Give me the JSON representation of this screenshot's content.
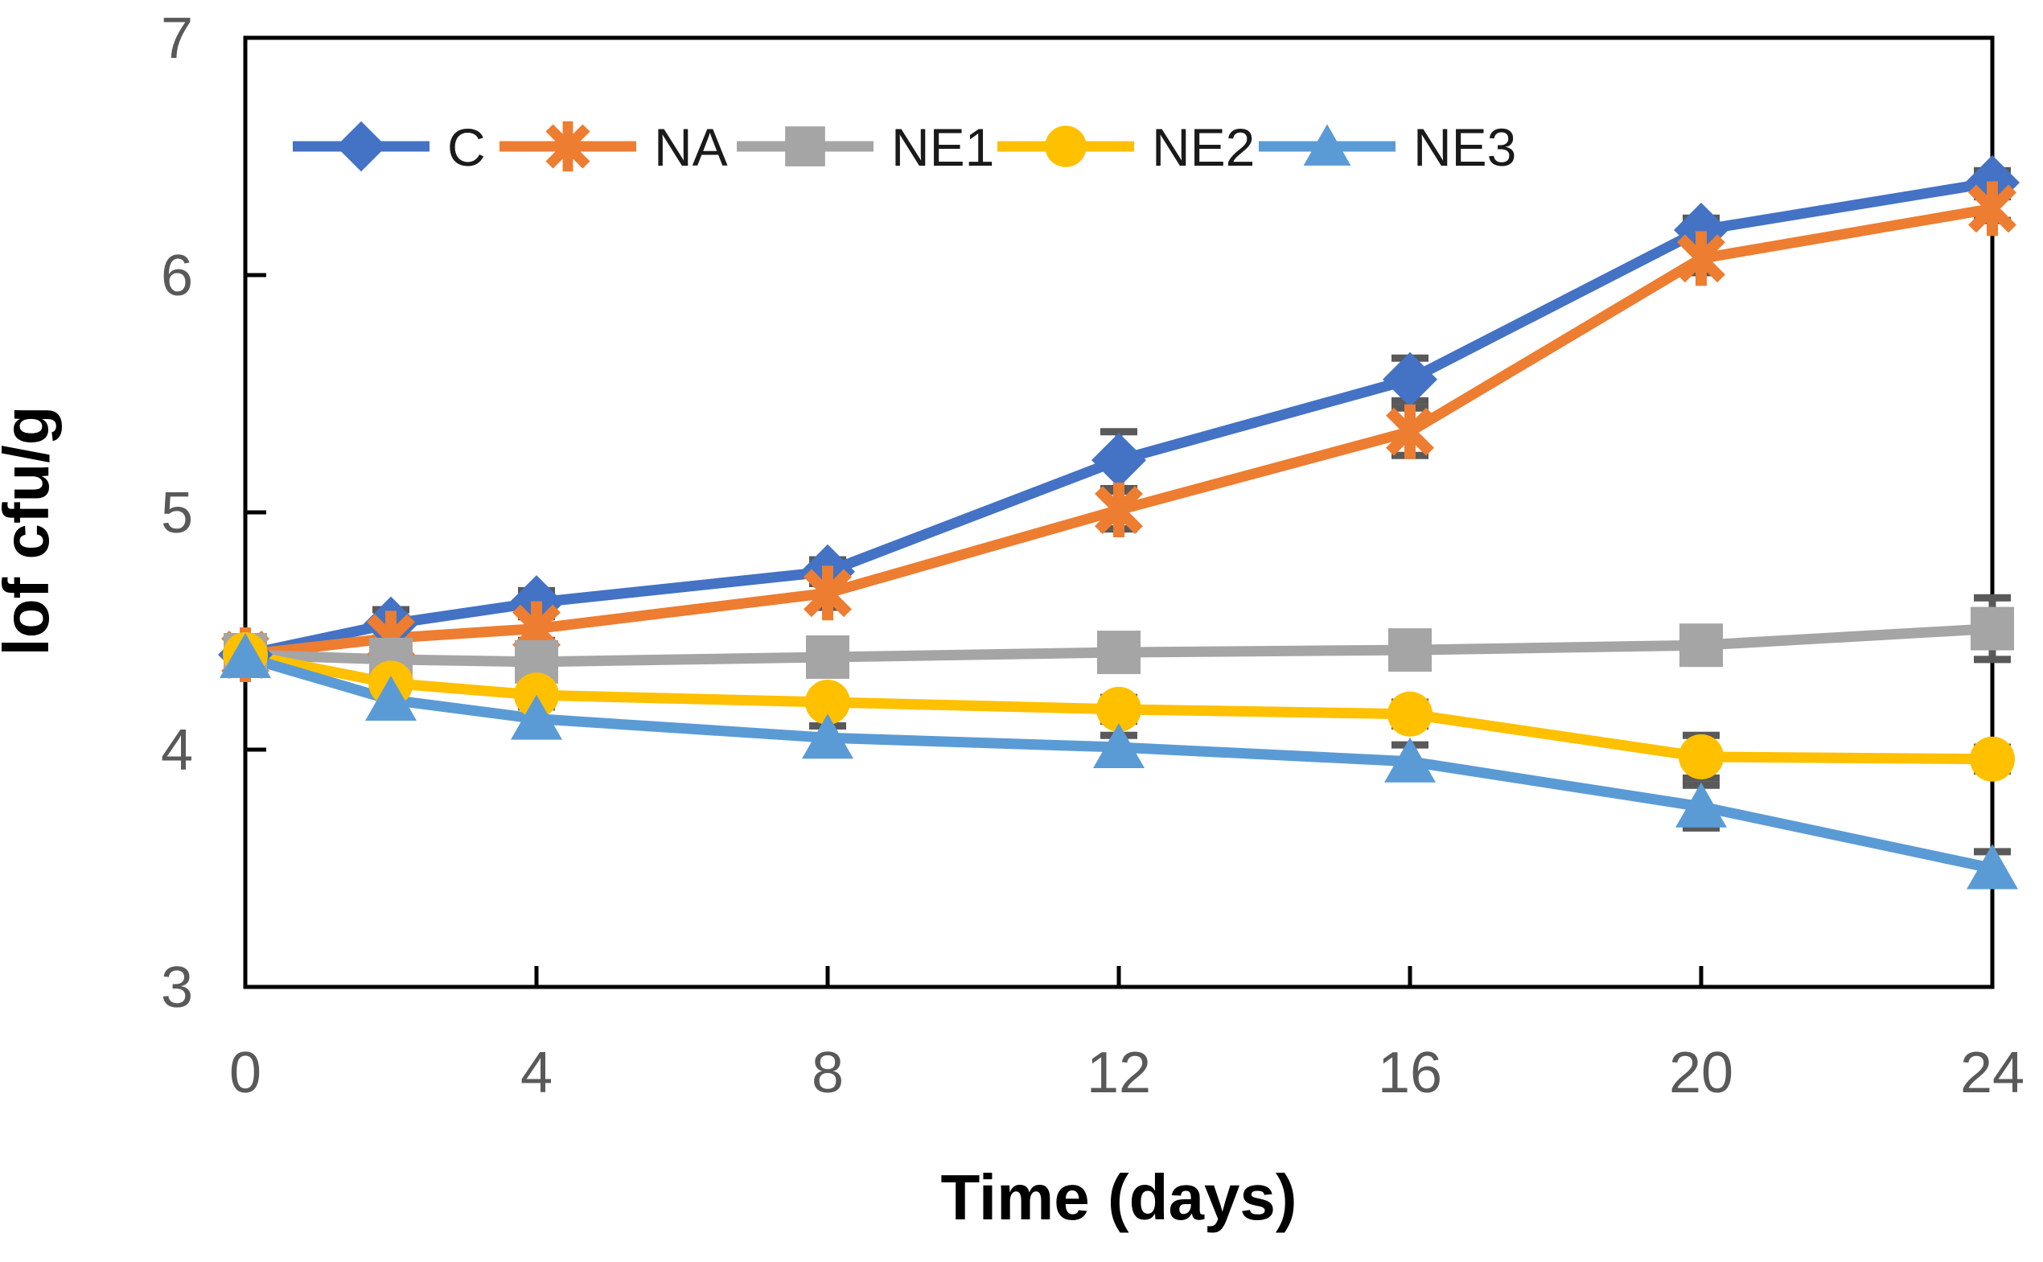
{
  "chart_data": {
    "type": "line",
    "title": "",
    "xlabel": "Time (days)",
    "ylabel": "lof cfu/g",
    "x": [
      0,
      2,
      4,
      8,
      12,
      16,
      20,
      24
    ],
    "x_ticks": [
      0,
      4,
      8,
      12,
      16,
      20,
      24
    ],
    "x_tick_labels": [
      "0",
      "4",
      "8",
      "12",
      "16",
      "20",
      "24"
    ],
    "y_ticks": [
      3,
      4,
      5,
      6,
      7
    ],
    "y_tick_labels": [
      "3",
      "4",
      "5",
      "6",
      "7"
    ],
    "xlim": [
      0,
      24
    ],
    "ylim": [
      3,
      7
    ],
    "grid": false,
    "legend_position": "top-inside-horizontal",
    "legend_entries": [
      "C",
      "NA",
      "NE1",
      "NE2",
      "NE3"
    ],
    "series": [
      {
        "name": "C",
        "color": "#4472C4",
        "marker": "diamond",
        "values": [
          4.4,
          4.53,
          4.62,
          4.75,
          5.22,
          5.56,
          6.19,
          6.39
        ],
        "errors": [
          0.03,
          0.06,
          0.05,
          0.05,
          0.12,
          0.09,
          0.05,
          0.05
        ]
      },
      {
        "name": "NA",
        "color": "#ED7D31",
        "marker": "asterisk",
        "values": [
          4.4,
          4.47,
          4.51,
          4.66,
          5.01,
          5.34,
          6.07,
          6.28
        ],
        "errors": [
          0.03,
          0.05,
          0.05,
          0.06,
          0.08,
          0.1,
          0.06,
          0.05
        ]
      },
      {
        "name": "NE1",
        "color": "#A5A5A5",
        "marker": "square",
        "values": [
          4.4,
          4.38,
          4.37,
          4.39,
          4.41,
          4.42,
          4.44,
          4.51
        ],
        "errors": [
          0.03,
          0.04,
          0.04,
          0.05,
          0.04,
          0.04,
          0.06,
          0.13
        ]
      },
      {
        "name": "NE2",
        "color": "#FFC000",
        "marker": "circle",
        "values": [
          4.4,
          4.28,
          4.23,
          4.2,
          4.17,
          4.15,
          3.97,
          3.96
        ],
        "errors": [
          0.03,
          0.04,
          0.04,
          0.04,
          0.05,
          0.05,
          0.09,
          0.05
        ]
      },
      {
        "name": "NE3",
        "color": "#5B9BD5",
        "marker": "triangle",
        "values": [
          4.39,
          4.21,
          4.13,
          4.05,
          4.01,
          3.95,
          3.76,
          3.5
        ],
        "errors": [
          0.03,
          0.06,
          0.05,
          0.05,
          0.05,
          0.07,
          0.09,
          0.07
        ]
      }
    ]
  },
  "style": {
    "axis_color": "#000000",
    "tick_label_color": "#595959",
    "error_bar_color": "#595959",
    "background": "#ffffff"
  }
}
